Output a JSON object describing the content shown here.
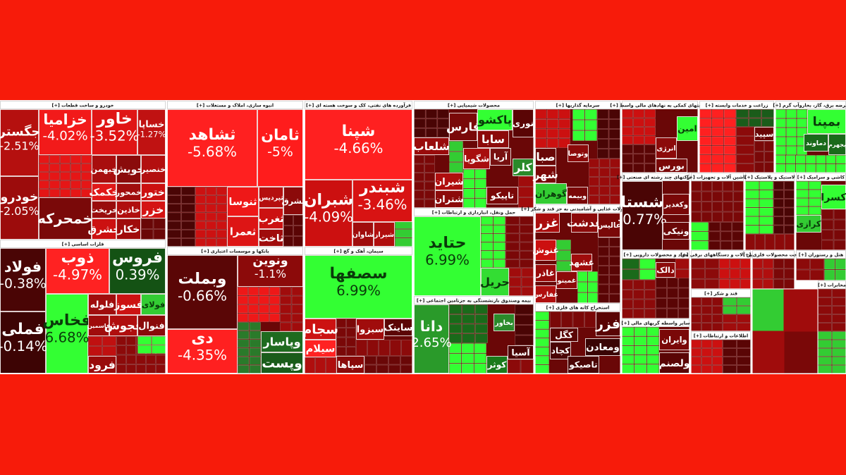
{
  "sectors": [
    {
      "title": "خودرو و ساخت قطعات [+]",
      "tiles": [
        {
          "name": "جگستر",
          "change": "-2.51%",
          "color": "#b5100f"
        },
        {
          "name": "خودرو",
          "change": "-2.05%",
          "color": "#9c0c0c"
        },
        {
          "name": "خزامیا",
          "change": "-4.02%",
          "color": "#f21a1a"
        },
        {
          "name": "خاور",
          "change": "-3.52%",
          "color": "#e01515"
        },
        {
          "name": "خساپا",
          "change": "-1.27%",
          "color": "#c01212"
        },
        {
          "name": "خبهمن",
          "color": "#a80e0e"
        },
        {
          "name": "خویش",
          "color": "#8a0b0b"
        },
        {
          "name": "خنصیر",
          "color": "#b30f0f"
        },
        {
          "name": "خکمک",
          "color": "#e01818"
        },
        {
          "name": "خمحور",
          "color": "#a00d0d"
        },
        {
          "name": "ختور",
          "color": "#cc1010"
        },
        {
          "name": "خریخت",
          "color": "#990c0c"
        },
        {
          "name": "خاذین",
          "color": "#b00e0e"
        },
        {
          "name": "خزر",
          "color": "#d41414"
        },
        {
          "name": "خمحرکه",
          "color": "#7a0909"
        },
        {
          "name": "خشرق",
          "color": "#cc1111"
        },
        {
          "name": "خکار",
          "color": "#a00c0c"
        }
      ]
    },
    {
      "title": "فلزات اساسی [+]",
      "tiles": [
        {
          "name": "فولاد",
          "change": "-0.38%",
          "color": "#4a0505"
        },
        {
          "name": "فملی",
          "change": "-0.14%",
          "color": "#3d0404"
        },
        {
          "name": "ذوب",
          "change": "-4.97%",
          "color": "#ff2222"
        },
        {
          "name": "فروس",
          "change": "0.39%",
          "color": "#145214"
        },
        {
          "name": "فخاس",
          "change": "6.68%",
          "color": "#33ff33"
        },
        {
          "name": "فلوله",
          "color": "#a00d0d"
        },
        {
          "name": "فسوز",
          "color": "#cc1212"
        },
        {
          "name": "فولای",
          "color": "#33cc33"
        },
        {
          "name": "فاسمین",
          "color": "#a00c0c"
        },
        {
          "name": "فجوش",
          "color": "#b00e0e"
        },
        {
          "name": "فنوال",
          "color": "#8a0a0a"
        },
        {
          "name": "فرود",
          "color": "#990b0b"
        }
      ]
    },
    {
      "title": "انبوه سازی، املاک و مستغلات [+]",
      "tiles": [
        {
          "name": "ثشاهد",
          "change": "-5.68%",
          "color": "#ff2020"
        },
        {
          "name": "ثامان",
          "change": "-5%",
          "color": "#ff1c1c"
        },
        {
          "name": "ثنوسا",
          "color": "#ee1818"
        },
        {
          "name": "ثعمرا",
          "color": "#dd1515"
        },
        {
          "name": "ثپردیس",
          "color": "#b50f0f"
        },
        {
          "name": "ثشرق",
          "color": "#8c0a0a"
        },
        {
          "name": "ثغرب",
          "color": "#cc1111"
        },
        {
          "name": "ثاخت",
          "color": "#a00c0c"
        }
      ]
    },
    {
      "title": "بانکها و موسسات اعتباری [+]",
      "tiles": [
        {
          "name": "وبملت",
          "change": "-0.66%",
          "color": "#5a0606"
        },
        {
          "name": "دی",
          "change": "-4.35%",
          "color": "#ff2020"
        },
        {
          "name": "ونوین",
          "change": "-1.1%",
          "color": "#8c0a0a"
        },
        {
          "name": "وپاسار",
          "color": "#1f6b1f"
        },
        {
          "name": "وپست",
          "color": "#1a5c1a"
        }
      ]
    },
    {
      "title": "فرآورده های نفتی، کک و سوخت هسته ای [+]",
      "tiles": [
        {
          "name": "شپنا",
          "change": "-4.66%",
          "color": "#ff2020"
        },
        {
          "name": "شبران",
          "change": "-4.09%",
          "color": "#cc1010"
        },
        {
          "name": "شبندر",
          "change": "-3.46%",
          "color": "#d81313"
        },
        {
          "name": "شاوان",
          "color": "#a00c0c"
        },
        {
          "name": "شیراز",
          "color": "#b00e0e"
        }
      ]
    },
    {
      "title": "سیمان، آهک و گچ [+]",
      "tiles": [
        {
          "name": "سصفها",
          "change": "6.99%",
          "color": "#33ff33"
        },
        {
          "name": "سجام",
          "color": "#cc1212"
        },
        {
          "name": "سیلام",
          "color": "#ff2222"
        },
        {
          "name": "سپاها",
          "color": "#8a0a0a"
        },
        {
          "name": "سبزوا",
          "color": "#a00c0c"
        },
        {
          "name": "ساینک",
          "color": "#5c0606"
        }
      ]
    },
    {
      "title": "محصولات شیمیایی [+]",
      "tiles": [
        {
          "name": "فارس",
          "color": "#7a0909"
        },
        {
          "name": "پاکشو",
          "color": "#33ff33"
        },
        {
          "name": "نوری",
          "color": "#5a0505"
        },
        {
          "name": "شلعاب",
          "color": "#990b0b"
        },
        {
          "name": "سابا",
          "color": "#8c0a0a"
        },
        {
          "name": "شگویا",
          "color": "#a80e0e"
        },
        {
          "name": "آریا",
          "color": "#771010"
        },
        {
          "name": "کلر",
          "color": "#2a8a2a"
        },
        {
          "name": "شیران",
          "color": "#b00e0e"
        },
        {
          "name": "تاپیکو",
          "color": "#7a0808"
        },
        {
          "name": "شتران",
          "color": "#8c0a0a"
        }
      ]
    },
    {
      "title": "حمل ونقل، انبارداری و ارتباطات [+]",
      "tiles": [
        {
          "name": "حتاید",
          "change": "6.99%",
          "color": "#33ff33"
        },
        {
          "name": "حریل",
          "color": "#33dd33"
        }
      ]
    },
    {
      "title": "بیمه وصندوق بازنشستگی به جزتامین اجتماعی [+]",
      "tiles": [
        {
          "name": "دانا",
          "change": "2.65%",
          "color": "#2a9a2a"
        },
        {
          "name": "بخاور",
          "color": "#2a8a2a"
        },
        {
          "name": "آسیا",
          "color": "#4a0505"
        },
        {
          "name": "کوثر",
          "color": "#1a7a1a"
        }
      ]
    },
    {
      "title": "سرمایه گذاریها [+]",
      "tiles": [
        {
          "name": "صبا",
          "color": "#6a0707"
        },
        {
          "name": "وتوصا",
          "color": "#8c0a0a"
        },
        {
          "name": "شهر",
          "color": "#7a0808"
        },
        {
          "name": "گوهران",
          "color": "#33cc33"
        },
        {
          "name": "وبیمه",
          "color": "#7a0808"
        }
      ]
    },
    {
      "title": "محصولات غذایی و آشامیدنی به جز قند و شکر [+]",
      "tiles": [
        {
          "name": "غزر",
          "color": "#aa0d0d"
        },
        {
          "name": "غدشت",
          "color": "#8c0a0a"
        },
        {
          "name": "عالیس",
          "color": "#7a0808"
        },
        {
          "name": "غنوش",
          "color": "#cc1010"
        },
        {
          "name": "غشهد",
          "color": "#a00c0c"
        },
        {
          "name": "غاذر",
          "color": "#990b0b"
        },
        {
          "name": "غمینو",
          "color": "#8c0a0a"
        },
        {
          "name": "غفارس",
          "color": "#b00e0e"
        }
      ]
    },
    {
      "title": "استخراج کانه های فلزی [+]",
      "tiles": [
        {
          "name": "فزر",
          "color": "#5a0505"
        },
        {
          "name": "کگل",
          "color": "#5a0505"
        },
        {
          "name": "ومعادن",
          "color": "#3a0404"
        },
        {
          "name": "کچاد",
          "color": "#4a0505"
        },
        {
          "name": "تاصیکو",
          "color": "#4a0505"
        }
      ]
    },
    {
      "title": "فعالیتهای کمکی به نهادهای مالی واسط [+]",
      "tiles": [
        {
          "name": "امین",
          "color": "#33ff33"
        },
        {
          "name": "انرژی",
          "color": "#8c0a0a"
        },
        {
          "name": "بورس",
          "color": "#7a0808"
        }
      ]
    },
    {
      "title": "شرکتهای چند رشته ای صنعتی [+]",
      "tiles": [
        {
          "name": "شستا",
          "change": "-0.77%",
          "color": "#4a0505"
        },
        {
          "name": "وکغدیر",
          "color": "#7a0808"
        },
        {
          "name": "ونیکی",
          "color": "#6a0707"
        }
      ]
    },
    {
      "title": "مواد و محصولات دارویی [+]",
      "tiles": [
        {
          "name": "دالک",
          "color": "#8c0a0a"
        }
      ]
    },
    {
      "title": "سایر واسطه گریهای مالی [+]",
      "tiles": [
        {
          "name": "وایران",
          "color": "#7a0808"
        },
        {
          "name": "ولصنم",
          "color": "#5a0505"
        }
      ]
    },
    {
      "title": "زراعت و خدمات وابسته [+]",
      "tiles": [
        {
          "name": "سپید",
          "color": "#6a0707"
        }
      ]
    },
    {
      "title": "عرضه برق، گاز، بخاروآب گرم [+]",
      "tiles": [
        {
          "name": "بمپنا",
          "color": "#33ff33"
        },
        {
          "name": "دماوند",
          "color": "#1a6a1a"
        },
        {
          "name": "بجهرم",
          "color": "#1a6a1a"
        }
      ]
    },
    {
      "title": "ماشین آلات و تجهیزات [+]",
      "tiles": []
    },
    {
      "title": "لاستیک و پلاستیک [+]",
      "tiles": []
    },
    {
      "title": "کاشی و سرامیک [+]",
      "tiles": [
        {
          "name": "کسرا",
          "color": "#33ff33"
        },
        {
          "name": "کرازی",
          "color": "#33cc33"
        }
      ]
    },
    {
      "title": "ماشین آلات و دستگاههای برقی [+]",
      "tiles": []
    },
    {
      "title": "ساخت محصولات فلزی [+]",
      "tiles": []
    },
    {
      "title": "هتل و رستوران [+]",
      "tiles": []
    },
    {
      "title": "قند و شکر [+]",
      "tiles": []
    },
    {
      "title": "اطلاعات و ارتباطات [+]",
      "tiles": []
    },
    {
      "title": "مخابرات [+]",
      "tiles": []
    }
  ]
}
